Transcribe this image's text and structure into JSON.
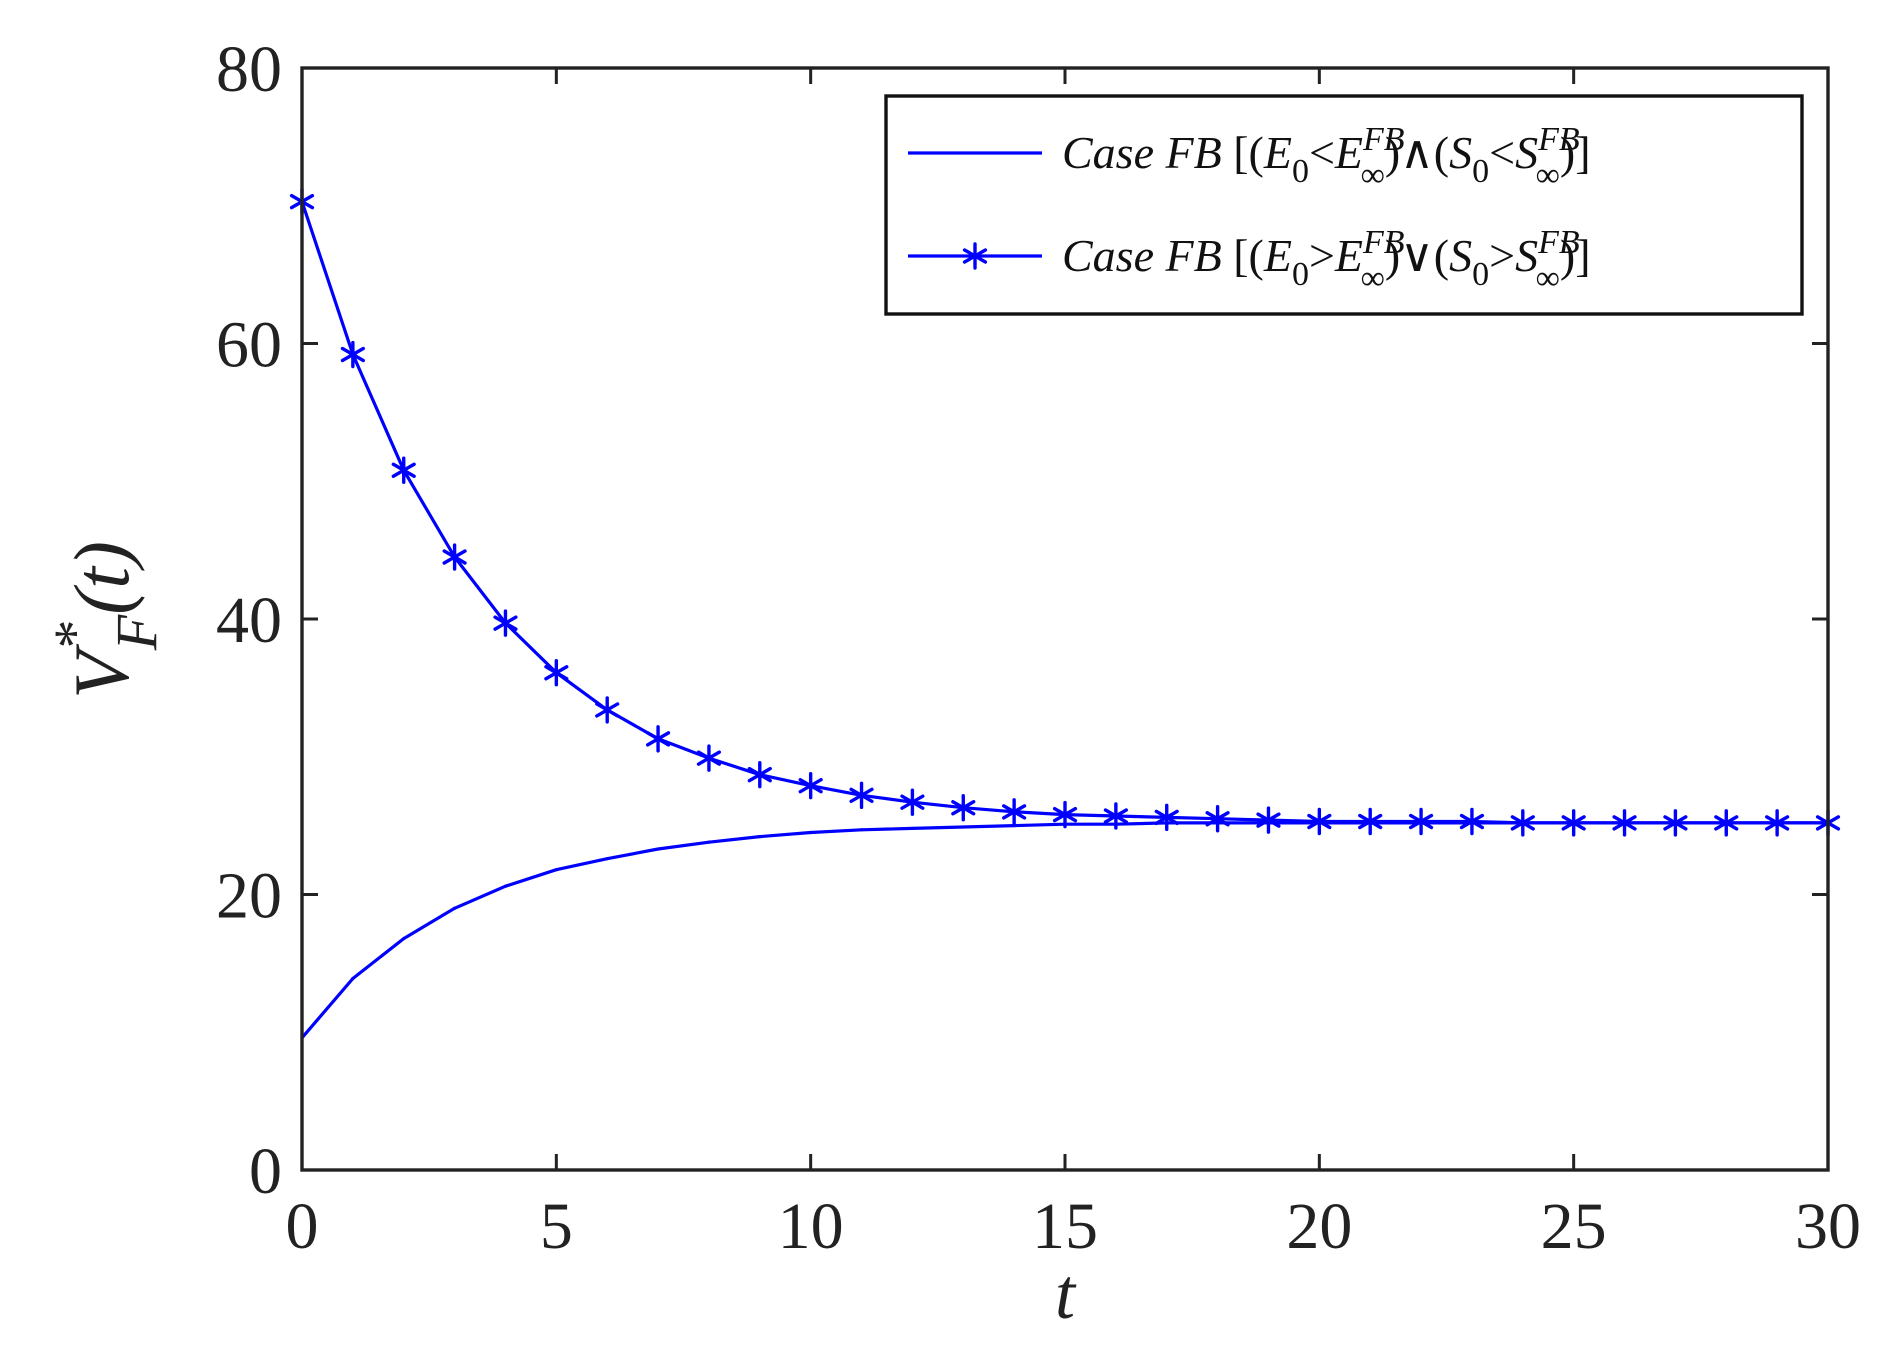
{
  "chart_data": {
    "type": "line",
    "title": "",
    "xlabel": "t",
    "ylabel": {
      "base": "V",
      "superscript": "*",
      "subscript": "F",
      "suffix": "(t)"
    },
    "xlim": [
      0,
      30
    ],
    "ylim": [
      0,
      80
    ],
    "xticks": [
      0,
      5,
      10,
      15,
      20,
      25,
      30
    ],
    "yticks": [
      0,
      20,
      40,
      60,
      80
    ],
    "grid": false,
    "legend_position": "top-right",
    "colors": {
      "series": "#0000ff",
      "axes": "#222222",
      "legend_border": "#111111"
    },
    "series": [
      {
        "name": {
          "case": "Case FB",
          "open": " [(",
          "a": "E",
          "a_sub": "0",
          "op1": "<",
          "b": "E",
          "b_sup": "FB",
          "b_sub": "∞",
          "join": ")∧(",
          "c": "S",
          "c_sub": "0",
          "op2": "<",
          "d": "S",
          "d_sup": "FB",
          "d_sub": "∞",
          "close": ")]"
        },
        "marker": "none",
        "x": [
          0,
          1,
          2,
          3,
          4,
          5,
          6,
          7,
          8,
          9,
          10,
          11,
          12,
          13,
          14,
          15,
          16,
          17,
          18,
          19,
          20,
          21,
          22,
          23,
          24,
          25,
          26,
          27,
          28,
          29,
          30
        ],
        "y": [
          9.6,
          13.9,
          16.8,
          19.0,
          20.6,
          21.8,
          22.6,
          23.3,
          23.8,
          24.2,
          24.5,
          24.7,
          24.8,
          24.9,
          25.0,
          25.1,
          25.1,
          25.2,
          25.2,
          25.2,
          25.2,
          25.2,
          25.2,
          25.2,
          25.2,
          25.2,
          25.2,
          25.2,
          25.2,
          25.2,
          25.2
        ]
      },
      {
        "name": {
          "case": "Case FB",
          "open": " [(",
          "a": "E",
          "a_sub": "0",
          "op1": ">",
          "b": "E",
          "b_sup": "FB",
          "b_sub": "∞",
          "join": ")∨(",
          "c": "S",
          "c_sub": "0",
          "op2": ">",
          "d": "S",
          "d_sup": "FB",
          "d_sub": "∞",
          "close": ")]"
        },
        "marker": "asterisk",
        "x": [
          0,
          1,
          2,
          3,
          4,
          5,
          6,
          7,
          8,
          9,
          10,
          11,
          12,
          13,
          14,
          15,
          16,
          17,
          18,
          19,
          20,
          21,
          22,
          23,
          24,
          25,
          26,
          27,
          28,
          29,
          30
        ],
        "y": [
          70.3,
          59.2,
          50.8,
          44.5,
          39.7,
          36.1,
          33.4,
          31.3,
          29.9,
          28.7,
          27.9,
          27.2,
          26.7,
          26.3,
          26.0,
          25.8,
          25.7,
          25.6,
          25.5,
          25.4,
          25.3,
          25.3,
          25.3,
          25.3,
          25.2,
          25.2,
          25.2,
          25.2,
          25.2,
          25.2,
          25.2
        ]
      }
    ]
  }
}
